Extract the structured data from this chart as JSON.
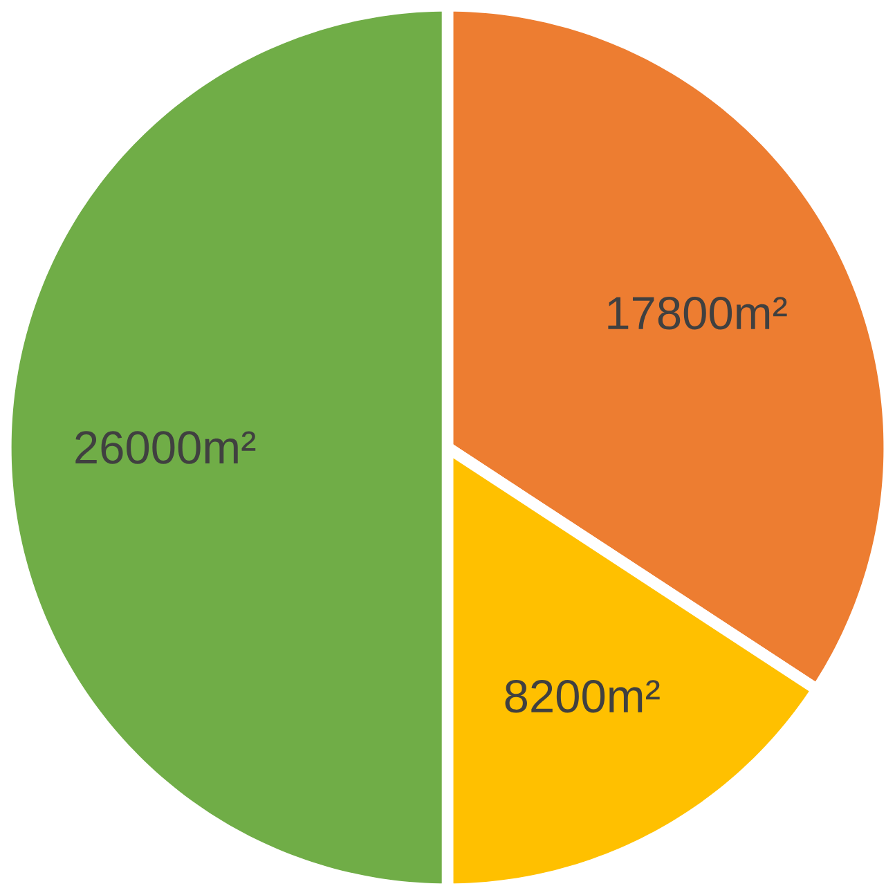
{
  "chart_data": {
    "type": "pie",
    "categories": [
      null,
      null,
      null
    ],
    "values": [
      17800,
      8200,
      26000
    ],
    "colors": [
      "#ed7d31",
      "#ffc000",
      "#70ad47"
    ],
    "value_labels": [
      "17800m²",
      "8200m²",
      "26000m²"
    ]
  }
}
